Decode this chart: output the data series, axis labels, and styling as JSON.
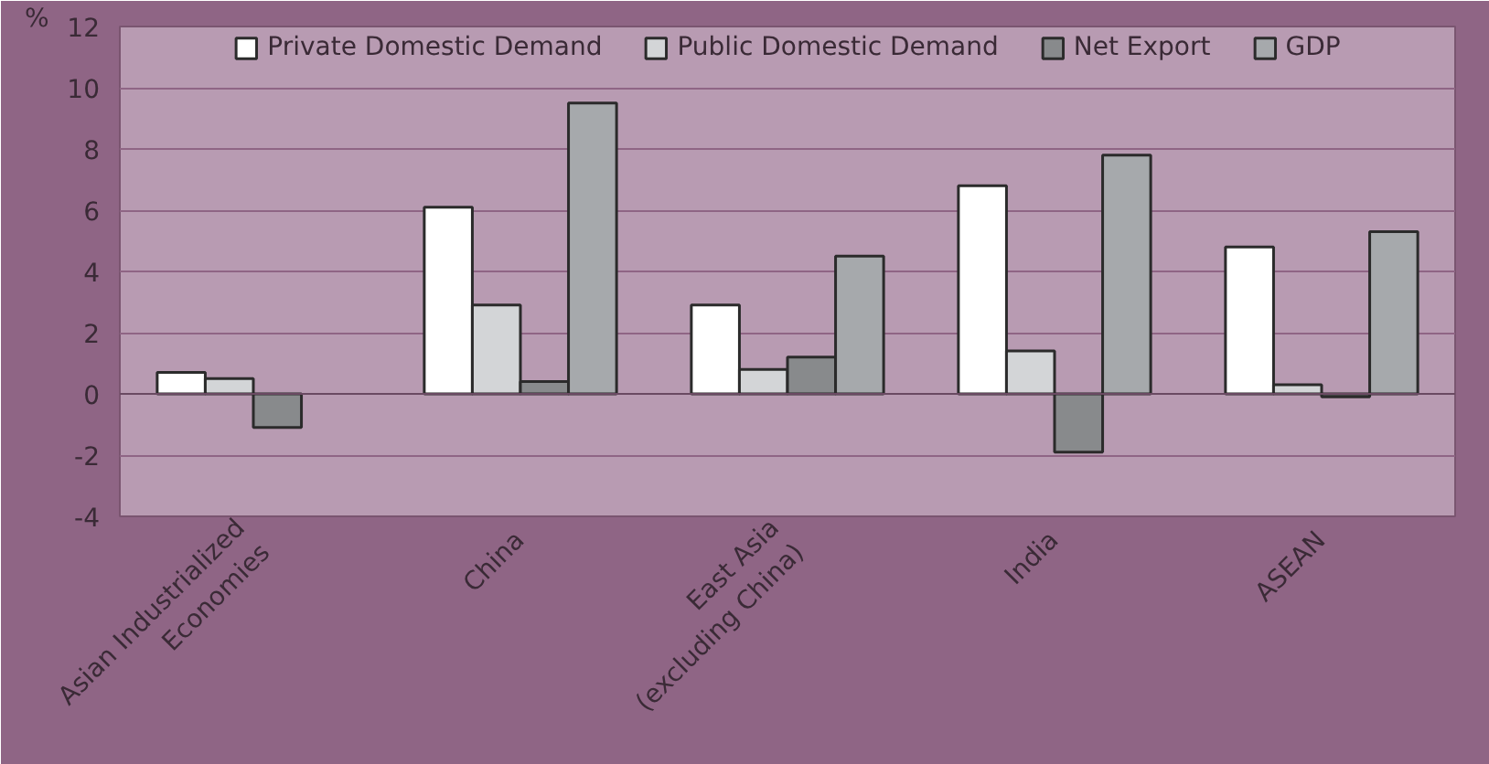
{
  "chart_data": {
    "type": "bar",
    "ylabel": "%",
    "categories": [
      "Asian Industrialized\nEconomies",
      "China",
      "East Asia\n(excluding China)",
      "India",
      "ASEAN"
    ],
    "series": [
      {
        "name": "Private Domestic Demand",
        "color": "#ffffff",
        "values": [
          0.7,
          6.1,
          2.9,
          6.8,
          4.8
        ]
      },
      {
        "name": "Public Domestic Demand",
        "color": "#d3d5d7",
        "values": [
          0.5,
          2.9,
          0.8,
          1.4,
          0.3
        ]
      },
      {
        "name": "Net Export",
        "color": "#888a8c",
        "values": [
          -1.1,
          0.4,
          1.2,
          -1.9,
          -0.1
        ]
      },
      {
        "name": "GDP",
        "color": "#a6a9ac",
        "values": [
          null,
          9.5,
          4.5,
          7.8,
          5.3
        ]
      }
    ],
    "ylim": [
      -4,
      12
    ],
    "yticks": [
      -4,
      -2,
      0,
      2,
      4,
      6,
      8,
      10,
      12
    ],
    "grid": "y",
    "legend": "top"
  }
}
